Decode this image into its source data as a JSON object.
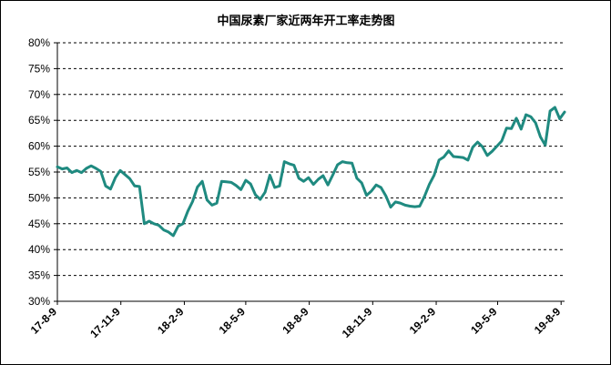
{
  "chart_data": {
    "type": "line",
    "title": "中国尿素厂家近两年开工率走势图",
    "xlabel": "",
    "ylabel": "",
    "ylim": [
      30,
      80
    ],
    "y_ticks": [
      "30%",
      "35%",
      "40%",
      "45%",
      "50%",
      "55%",
      "60%",
      "65%",
      "70%",
      "75%",
      "80%"
    ],
    "x_ticks": [
      "17-8-9",
      "17-11-9",
      "18-2-9",
      "18-5-9",
      "18-8-9",
      "18-11-9",
      "19-2-9",
      "19-5-9",
      "19-8-9"
    ],
    "grid": "horizontal-dashed",
    "legend": "none",
    "line_color": "#1f8a80",
    "series": [
      {
        "x": [
          "2017-08-09",
          "2017-08-16",
          "2017-08-23",
          "2017-08-30",
          "2017-09-06",
          "2017-09-13",
          "2017-09-20",
          "2017-09-27",
          "2017-10-04",
          "2017-10-11",
          "2017-10-18",
          "2017-10-25",
          "2017-11-01",
          "2017-11-08",
          "2017-11-15",
          "2017-11-22",
          "2017-11-29",
          "2017-12-06",
          "2017-12-13",
          "2017-12-20",
          "2017-12-27",
          "2018-01-03",
          "2018-01-10",
          "2018-01-17",
          "2018-01-24",
          "2018-01-31",
          "2018-02-07",
          "2018-02-14",
          "2018-02-21",
          "2018-02-28",
          "2018-03-07",
          "2018-03-14",
          "2018-03-21",
          "2018-03-28",
          "2018-04-04",
          "2018-04-11",
          "2018-04-18",
          "2018-04-25",
          "2018-05-02",
          "2018-05-09",
          "2018-05-16",
          "2018-05-23",
          "2018-05-30",
          "2018-06-06",
          "2018-06-13",
          "2018-06-20",
          "2018-06-27",
          "2018-07-04",
          "2018-07-11",
          "2018-07-18",
          "2018-07-25",
          "2018-08-01",
          "2018-08-08",
          "2018-08-15",
          "2018-08-22",
          "2018-08-29",
          "2018-09-05",
          "2018-09-12",
          "2018-09-19",
          "2018-09-26",
          "2018-10-03",
          "2018-10-10",
          "2018-10-17",
          "2018-10-24",
          "2018-10-31",
          "2018-11-07",
          "2018-11-14",
          "2018-11-21",
          "2018-11-28",
          "2018-12-05",
          "2018-12-12",
          "2018-12-19",
          "2018-12-26",
          "2019-01-02",
          "2019-01-09",
          "2019-01-16",
          "2019-01-23",
          "2019-01-30",
          "2019-02-06",
          "2019-02-13",
          "2019-02-20",
          "2019-02-27",
          "2019-03-06",
          "2019-03-13",
          "2019-03-20",
          "2019-03-27",
          "2019-04-03",
          "2019-04-10",
          "2019-04-17",
          "2019-04-24",
          "2019-05-01",
          "2019-05-08",
          "2019-05-15",
          "2019-05-22",
          "2019-05-29",
          "2019-06-05",
          "2019-06-12",
          "2019-06-19",
          "2019-06-26",
          "2019-07-03",
          "2019-07-10",
          "2019-07-17",
          "2019-07-24",
          "2019-07-31",
          "2019-08-07",
          "2019-08-14"
        ],
        "values": [
          56.0,
          55.6,
          55.8,
          54.9,
          55.3,
          54.9,
          55.7,
          56.2,
          55.7,
          55.1,
          52.3,
          51.7,
          53.9,
          55.3,
          54.5,
          53.7,
          52.3,
          52.2,
          45.0,
          45.5,
          45.0,
          44.7,
          43.8,
          43.4,
          42.7,
          44.5,
          45.0,
          47.4,
          49.3,
          52.1,
          53.2,
          49.6,
          48.6,
          49.0,
          53.2,
          53.1,
          53.0,
          52.4,
          51.6,
          53.4,
          52.7,
          50.6,
          49.7,
          51.1,
          54.4,
          52.0,
          52.3,
          57.0,
          56.6,
          56.3,
          53.8,
          53.2,
          53.9,
          52.6,
          53.6,
          54.3,
          52.5,
          54.4,
          56.4,
          57.0,
          56.8,
          56.7,
          53.8,
          52.9,
          50.5,
          51.3,
          52.5,
          52.0,
          50.4,
          48.2,
          49.2,
          49.0,
          48.6,
          48.4,
          48.3,
          48.4,
          50.3,
          52.6,
          54.4,
          57.3,
          57.9,
          59.1,
          58.0,
          57.9,
          57.8,
          57.3,
          59.8,
          60.8,
          59.9,
          58.2,
          59.0,
          60.0,
          61.0,
          63.5,
          63.4,
          65.4,
          63.3,
          66.1,
          65.7,
          64.5,
          61.8,
          60.2,
          66.8,
          67.5,
          65.3,
          66.6
        ]
      }
    ]
  }
}
